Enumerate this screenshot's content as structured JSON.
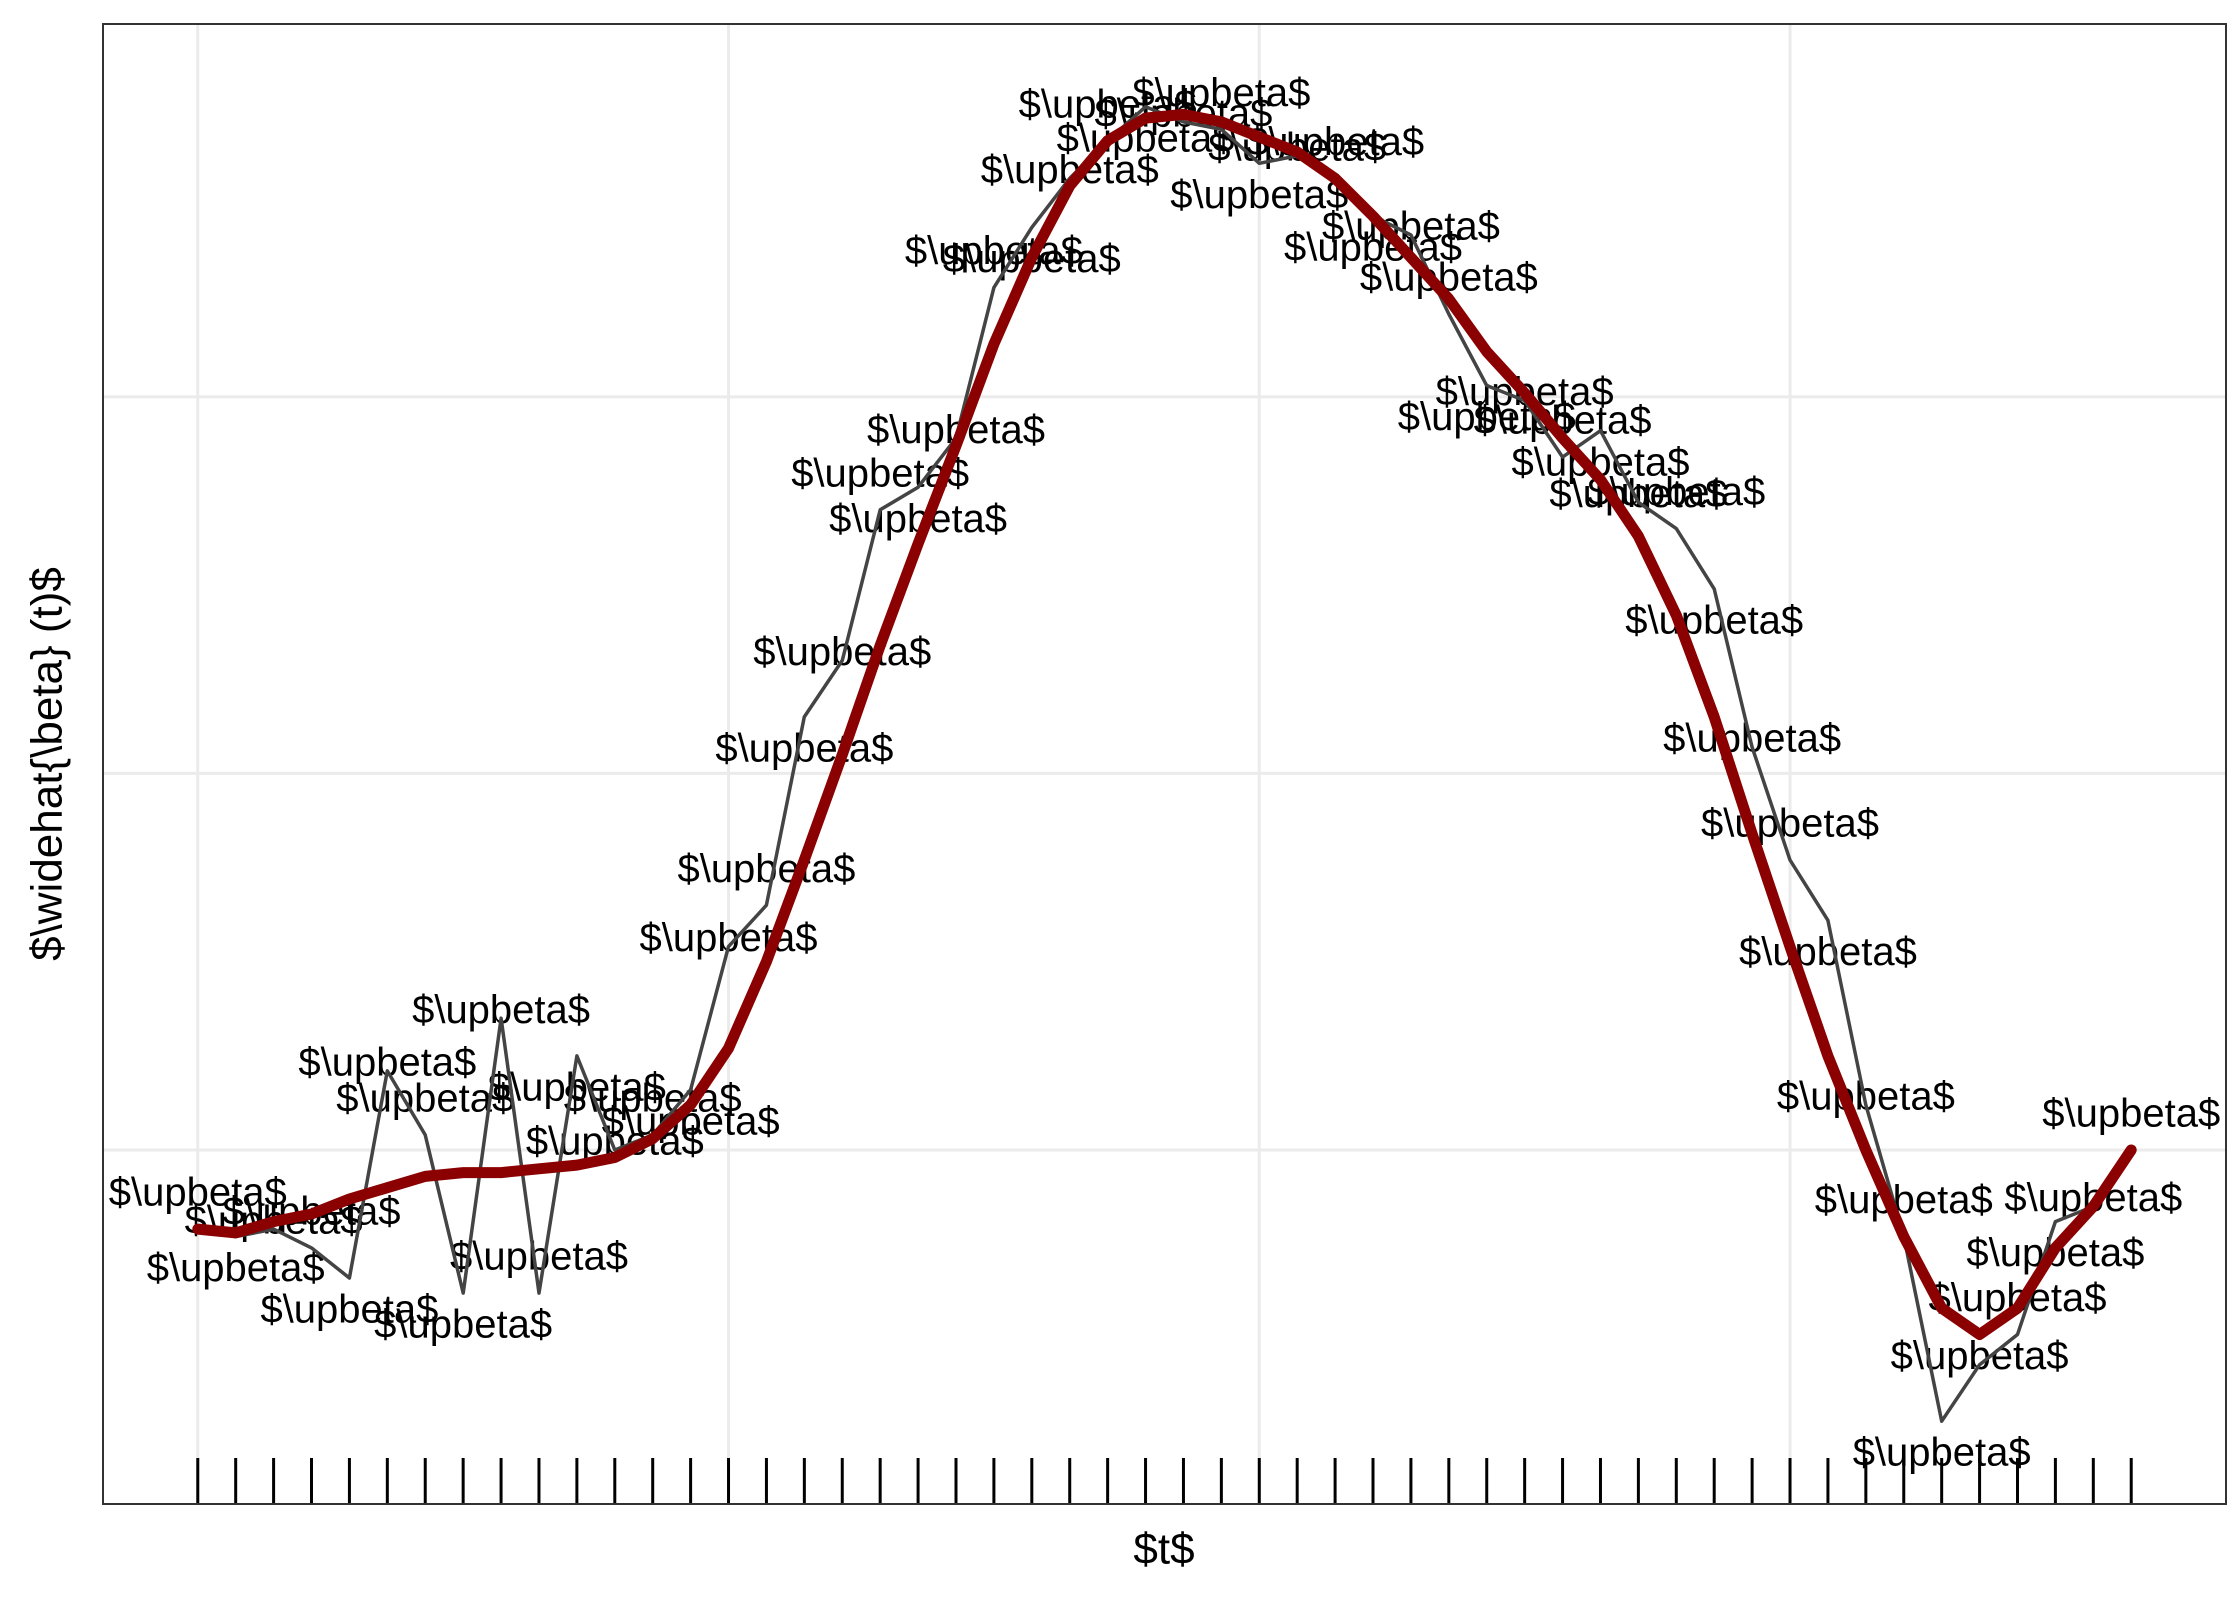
{
  "chart_data": {
    "type": "line",
    "xlabel": "$t$",
    "ylabel": "$\\widehat{\\beta} (t)$",
    "x": [
      0,
      1,
      2,
      3,
      4,
      5,
      6,
      7,
      8,
      9,
      10,
      11,
      12,
      13,
      14,
      15,
      16,
      17,
      18,
      19,
      20,
      21,
      22,
      23,
      24,
      25,
      26,
      27,
      28,
      29,
      30,
      31,
      32,
      33,
      34,
      35,
      36,
      37,
      38,
      39,
      40,
      41,
      42,
      43,
      44,
      45,
      46,
      47,
      48,
      49,
      50,
      51
    ],
    "labels": [
      "$\\upbeta$",
      "$\\upbeta$",
      "$\\upbeta$",
      "$\\upbeta$",
      "$\\upbeta$",
      "$\\upbeta$",
      "$\\upbeta$",
      "$\\upbeta$",
      "$\\upbeta$",
      "$\\upbeta$",
      "$\\upbeta$",
      "$\\upbeta$",
      "$\\upbeta$",
      "$\\upbeta$",
      "$\\upbeta$",
      "$\\upbeta$",
      "$\\upbeta$",
      "$\\upbeta$",
      "$\\upbeta$",
      "$\\upbeta$",
      "$\\upbeta$",
      "$\\upbeta$",
      "$\\upbeta$",
      "$\\upbeta$",
      "$\\upbeta$",
      "$\\upbeta$",
      "$\\upbeta$",
      "$\\upbeta$",
      "$\\upbeta$",
      "$\\upbeta$",
      "$\\upbeta$",
      "$\\upbeta$",
      "$\\upbeta$",
      "$\\upbeta$",
      "$\\upbeta$",
      "$\\upbeta$",
      "$\\upbeta$",
      "$\\upbeta$",
      "$\\upbeta$",
      "$\\upbeta$",
      "$\\upbeta$",
      "$\\upbeta$",
      "$\\upbeta$",
      "$\\upbeta$",
      "$\\upbeta$",
      "$\\upbeta$",
      "$\\upbeta$",
      "$\\upbeta$",
      "$\\upbeta$",
      "$\\upbeta$",
      "$\\upbeta$",
      "$\\upbeta$"
    ],
    "series": [
      {
        "color": "#444444",
        "values": [
          -0.21,
          -0.23,
          -0.21,
          -0.26,
          -0.34,
          0.21,
          0.04,
          -0.38,
          0.35,
          -0.38,
          0.25,
          0.0,
          0.04,
          0.16,
          0.54,
          0.65,
          1.15,
          1.3,
          1.7,
          1.76,
          1.89,
          2.29,
          2.45,
          2.58,
          2.68,
          2.77,
          2.73,
          2.71,
          2.62,
          2.64,
          2.58,
          2.48,
          2.43,
          2.22,
          2.03,
          1.99,
          1.84,
          1.91,
          1.72,
          1.65,
          1.49,
          1.07,
          0.77,
          0.61,
          0.12,
          -0.23,
          -0.72,
          -0.57,
          -0.49,
          -0.19,
          -0.15,
          0.0
        ]
      },
      {
        "color": "#8b0000",
        "values": [
          -0.21,
          -0.22,
          -0.19,
          -0.17,
          -0.13,
          -0.1,
          -0.07,
          -0.06,
          -0.06,
          -0.05,
          -0.04,
          -0.02,
          0.03,
          0.12,
          0.27,
          0.5,
          0.77,
          1.05,
          1.34,
          1.61,
          1.87,
          2.14,
          2.37,
          2.56,
          2.68,
          2.74,
          2.75,
          2.73,
          2.69,
          2.65,
          2.58,
          2.48,
          2.37,
          2.26,
          2.12,
          2.01,
          1.89,
          1.78,
          1.63,
          1.42,
          1.15,
          0.84,
          0.54,
          0.25,
          0.0,
          -0.23,
          -0.42,
          -0.49,
          -0.42,
          -0.26,
          -0.15,
          0.0
        ]
      }
    ],
    "xlim": [
      -2.5,
      53.5
    ],
    "ylim": [
      -0.94,
      2.99
    ],
    "xticks": [
      0,
      14,
      28,
      42
    ],
    "yticks": [
      0,
      1,
      2
    ],
    "grid": true,
    "rug": true
  }
}
